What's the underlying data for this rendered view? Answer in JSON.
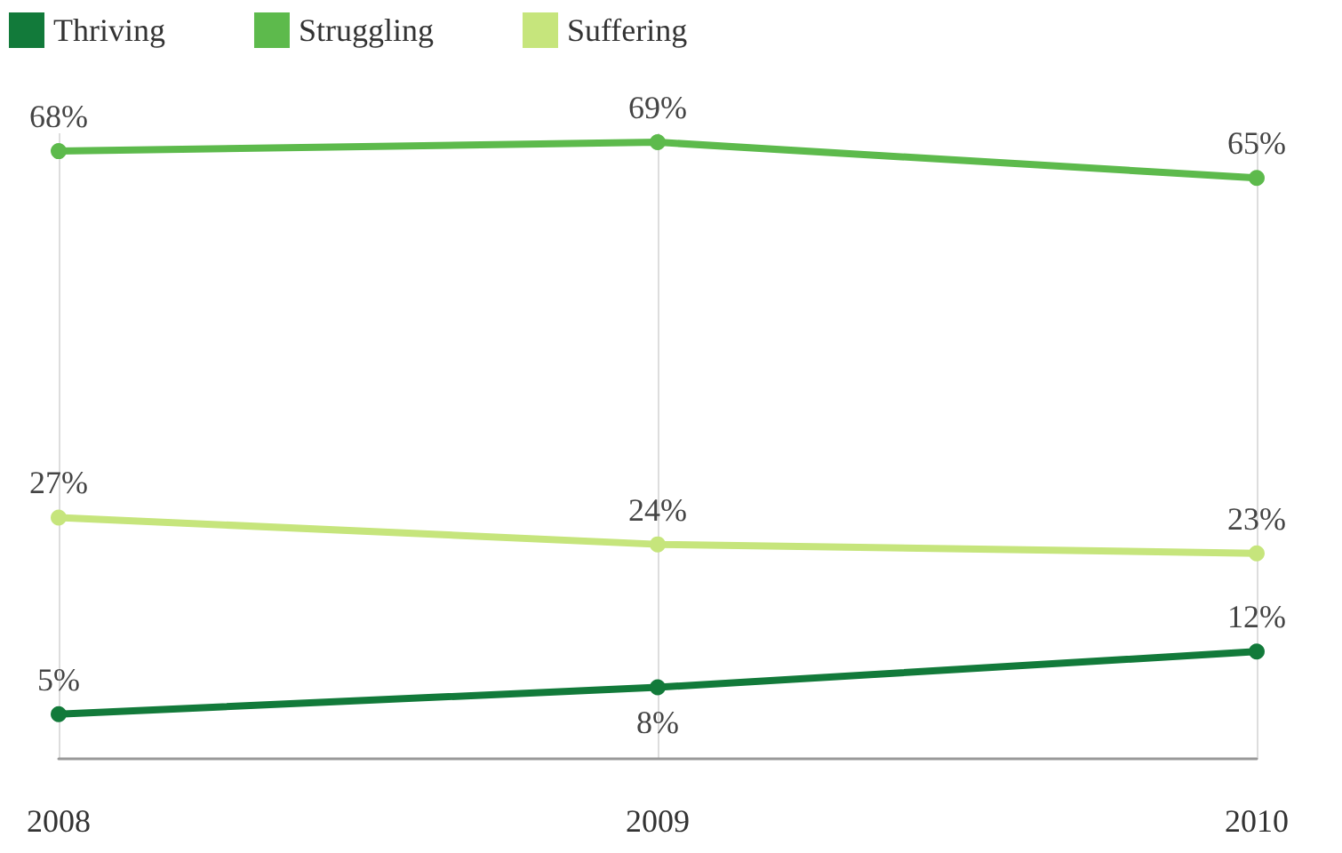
{
  "chart_data": {
    "type": "line",
    "categories": [
      "2008",
      "2009",
      "2010"
    ],
    "series": [
      {
        "name": "Thriving",
        "color": "#127a3a",
        "values": [
          5,
          8,
          12
        ],
        "value_labels": [
          "5%",
          "8%",
          "12%"
        ]
      },
      {
        "name": "Struggling",
        "color": "#5dba4c",
        "values": [
          68,
          69,
          65
        ],
        "value_labels": [
          "68%",
          "69%",
          "65%"
        ]
      },
      {
        "name": "Suffering",
        "color": "#c6e57c",
        "values": [
          27,
          24,
          23
        ],
        "value_labels": [
          "27%",
          "24%",
          "23%"
        ]
      }
    ],
    "legend": "top left",
    "grid": "x",
    "marker": "circle",
    "line_style": "solid",
    "tick_labels": "x"
  }
}
